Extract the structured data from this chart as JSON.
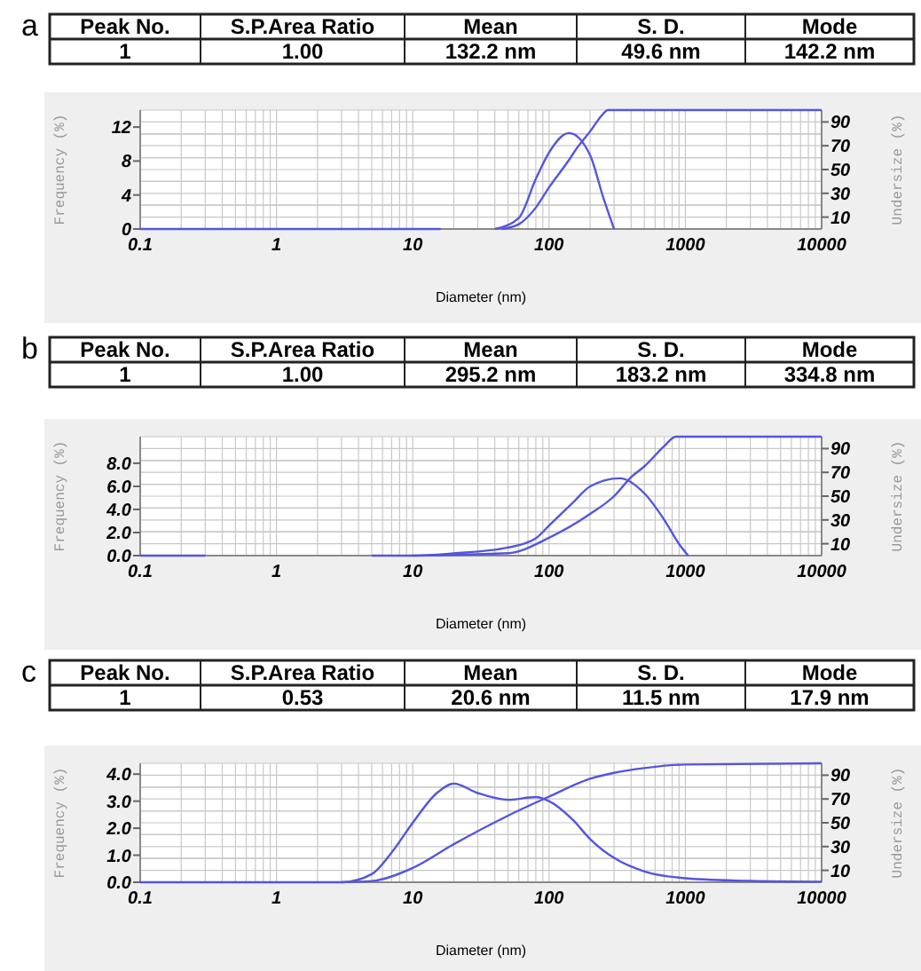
{
  "chart_data": [
    {
      "type": "other",
      "title": "a",
      "annotations": [
        "Peak No.",
        "S.P.Area Ratio",
        "Mean",
        "S. D.",
        "Mode",
        "1",
        "1.00",
        "132.2 nm",
        "49.6 nm",
        "142.2 nm"
      ]
    },
    {
      "type": "line",
      "xlabel": "Diameter (nm)",
      "ylabel": "Frequency (%)",
      "y2label": "Undersize (%)",
      "log": "x",
      "grid": true,
      "xlim": [
        0.1,
        10000
      ],
      "xticks": [
        0.1,
        1,
        10,
        100,
        1000,
        10000
      ],
      "ylim": [
        0,
        14
      ],
      "yticks": [
        0,
        4,
        8,
        12
      ],
      "y2lim": [
        0,
        100
      ],
      "y2ticks": [
        10,
        30,
        50,
        70,
        90
      ],
      "series": [
        {
          "color": "#5555dd",
          "x": [
            0.1,
            16,
            25,
            40,
            60,
            80,
            100,
            140,
            200,
            250,
            300
          ],
          "values": [
            0,
            0,
            null,
            0,
            1.3,
            5.9,
            9.0,
            11.3,
            8.7,
            3.7,
            0
          ]
        },
        {
          "color": "#5555dd",
          "axis": "y2",
          "x": [
            45,
            60,
            80,
            100,
            140,
            160,
            200,
            250,
            270,
            10000
          ],
          "values": [
            0,
            4,
            18,
            35,
            58,
            68,
            82,
            97,
            100,
            100
          ]
        }
      ]
    },
    {
      "type": "other",
      "title": "b",
      "annotations": [
        "Peak No.",
        "S.P.Area Ratio",
        "Mean",
        "S. D.",
        "Mode",
        "1",
        "1.00",
        "295.2 nm",
        "183.2 nm",
        "334.8 nm"
      ]
    },
    {
      "type": "line",
      "xlabel": "Diameter (nm)",
      "ylabel": "Frequency (%)",
      "y2label": "Undersize (%)",
      "log": "x",
      "grid": true,
      "xlim": [
        0.1,
        10000
      ],
      "xticks": [
        0.1,
        1,
        10,
        100,
        1000,
        10000
      ],
      "ylim": [
        0,
        10.3
      ],
      "yticks": [
        {
          "value": 0,
          "label": "0.0"
        },
        {
          "value": 2,
          "label": "2.0"
        },
        {
          "value": 4,
          "label": "4.0"
        },
        {
          "value": 6,
          "label": "6.0"
        },
        {
          "value": 8,
          "label": "8.0"
        }
      ],
      "y2lim": [
        0,
        100
      ],
      "y2ticks": [
        10,
        30,
        50,
        70,
        90
      ],
      "series": [
        {
          "color": "#5555dd",
          "x": [
            0.1,
            0.3,
            1,
            5,
            10,
            20,
            50,
            80,
            100,
            150,
            200,
            330,
            500,
            700,
            900,
            1050
          ],
          "values": [
            0,
            0,
            null,
            0,
            0,
            0.2,
            0.7,
            1.5,
            2.6,
            4.6,
            6.0,
            6.7,
            5.4,
            3.1,
            1.0,
            0
          ]
        },
        {
          "color": "#5555dd",
          "axis": "y2",
          "x": [
            10,
            50,
            100,
            200,
            300,
            400,
            500,
            700,
            850,
            10000
          ],
          "values": [
            0,
            2,
            15,
            35,
            50,
            66,
            75,
            92,
            100,
            100
          ]
        }
      ]
    },
    {
      "type": "other",
      "title": "c",
      "annotations": [
        "Peak No.",
        "S.P.Area Ratio",
        "Mean",
        "S. D.",
        "Mode",
        "1",
        "0.53",
        "20.6 nm",
        "11.5 nm",
        "17.9 nm"
      ]
    },
    {
      "type": "line",
      "xlabel": "Diameter (nm)",
      "ylabel": "Frequency (%)",
      "y2label": "Undersize (%)",
      "log": "x",
      "grid": true,
      "xlim": [
        0.1,
        10000
      ],
      "xticks": [
        0.1,
        1,
        10,
        100,
        1000,
        10000
      ],
      "ylim": [
        0,
        4.4
      ],
      "yticks": [
        {
          "value": 0,
          "label": "0.0"
        },
        {
          "value": 1,
          "label": "1.0"
        },
        {
          "value": 2,
          "label": "2.0"
        },
        {
          "value": 3,
          "label": "3.0"
        },
        {
          "value": 4,
          "label": "4.0"
        }
      ],
      "y2lim": [
        0,
        100
      ],
      "y2ticks": [
        10,
        30,
        50,
        70,
        90
      ],
      "series": [
        {
          "color": "#5555dd",
          "x": [
            0.1,
            3,
            5,
            7,
            10,
            15,
            20,
            30,
            50,
            80,
            100,
            150,
            200,
            300,
            500,
            1000,
            3000,
            10000
          ],
          "values": [
            0,
            0,
            0.3,
            1.1,
            2.2,
            3.3,
            3.65,
            3.3,
            3.05,
            3.15,
            3.0,
            2.3,
            1.6,
            0.9,
            0.4,
            0.15,
            0.05,
            0.02
          ]
        },
        {
          "color": "#5555dd",
          "axis": "y2",
          "x": [
            3,
            5,
            10,
            20,
            50,
            100,
            200,
            300,
            500,
            1000,
            10000
          ],
          "values": [
            0,
            1,
            12,
            32,
            56,
            72,
            87,
            92,
            96,
            99,
            100
          ]
        }
      ]
    }
  ]
}
